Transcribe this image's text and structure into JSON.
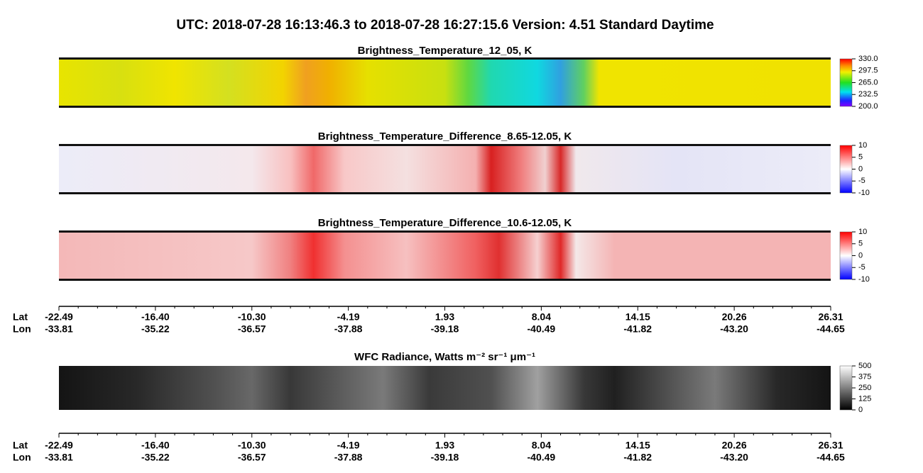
{
  "title": "UTC:  2018-07-28   16:13:46.3  to  2018-07-28   16:27:15.6    Version: 4.51  Standard Daytime",
  "chart_data": [
    {
      "type": "heatmap",
      "title": "Brightness_Temperature_12_05, K",
      "colormap": "rainbow",
      "zlim": [
        200,
        330
      ],
      "zticks": [
        {
          "value": 330,
          "label": "330.0"
        },
        {
          "value": 297.5,
          "label": "297.5"
        },
        {
          "value": 265,
          "label": "265.0"
        },
        {
          "value": 232.5,
          "label": "232.5"
        },
        {
          "value": 200,
          "label": "200.0"
        }
      ]
    },
    {
      "type": "heatmap",
      "title": "Brightness_Temperature_Difference_8.65-12.05, K",
      "colormap": "diverging",
      "zlim": [
        -10,
        10
      ],
      "zticks": [
        10,
        5,
        0,
        -5,
        -10
      ]
    },
    {
      "type": "heatmap",
      "title": "Brightness_Temperature_Difference_10.6-12.05, K",
      "colormap": "diverging",
      "zlim": [
        -10,
        10
      ],
      "zticks": [
        10,
        5,
        0,
        -5,
        -10
      ]
    },
    {
      "type": "heatmap",
      "title": "WFC Radiance, Watts m⁻² sr⁻¹ μm⁻¹",
      "colormap": "gray",
      "zlim": [
        0,
        500
      ],
      "zticks": [
        500,
        375,
        250,
        125,
        0
      ]
    }
  ],
  "along_track_axis": {
    "lat_label": "Lat",
    "lon_label": "Lon",
    "lat_ticks": [
      -22.49,
      {
        "value": -16.4,
        "label": "-16.40"
      },
      {
        "value": -10.3,
        "label": "-10.30"
      },
      -4.19,
      1.93,
      8.04,
      14.15,
      20.26,
      26.31
    ],
    "lon_ticks": [
      -33.81,
      -35.22,
      -36.57,
      -37.88,
      -39.18,
      -40.49,
      -41.82,
      {
        "value": -43.2,
        "label": "-43.20"
      },
      -44.65
    ]
  }
}
